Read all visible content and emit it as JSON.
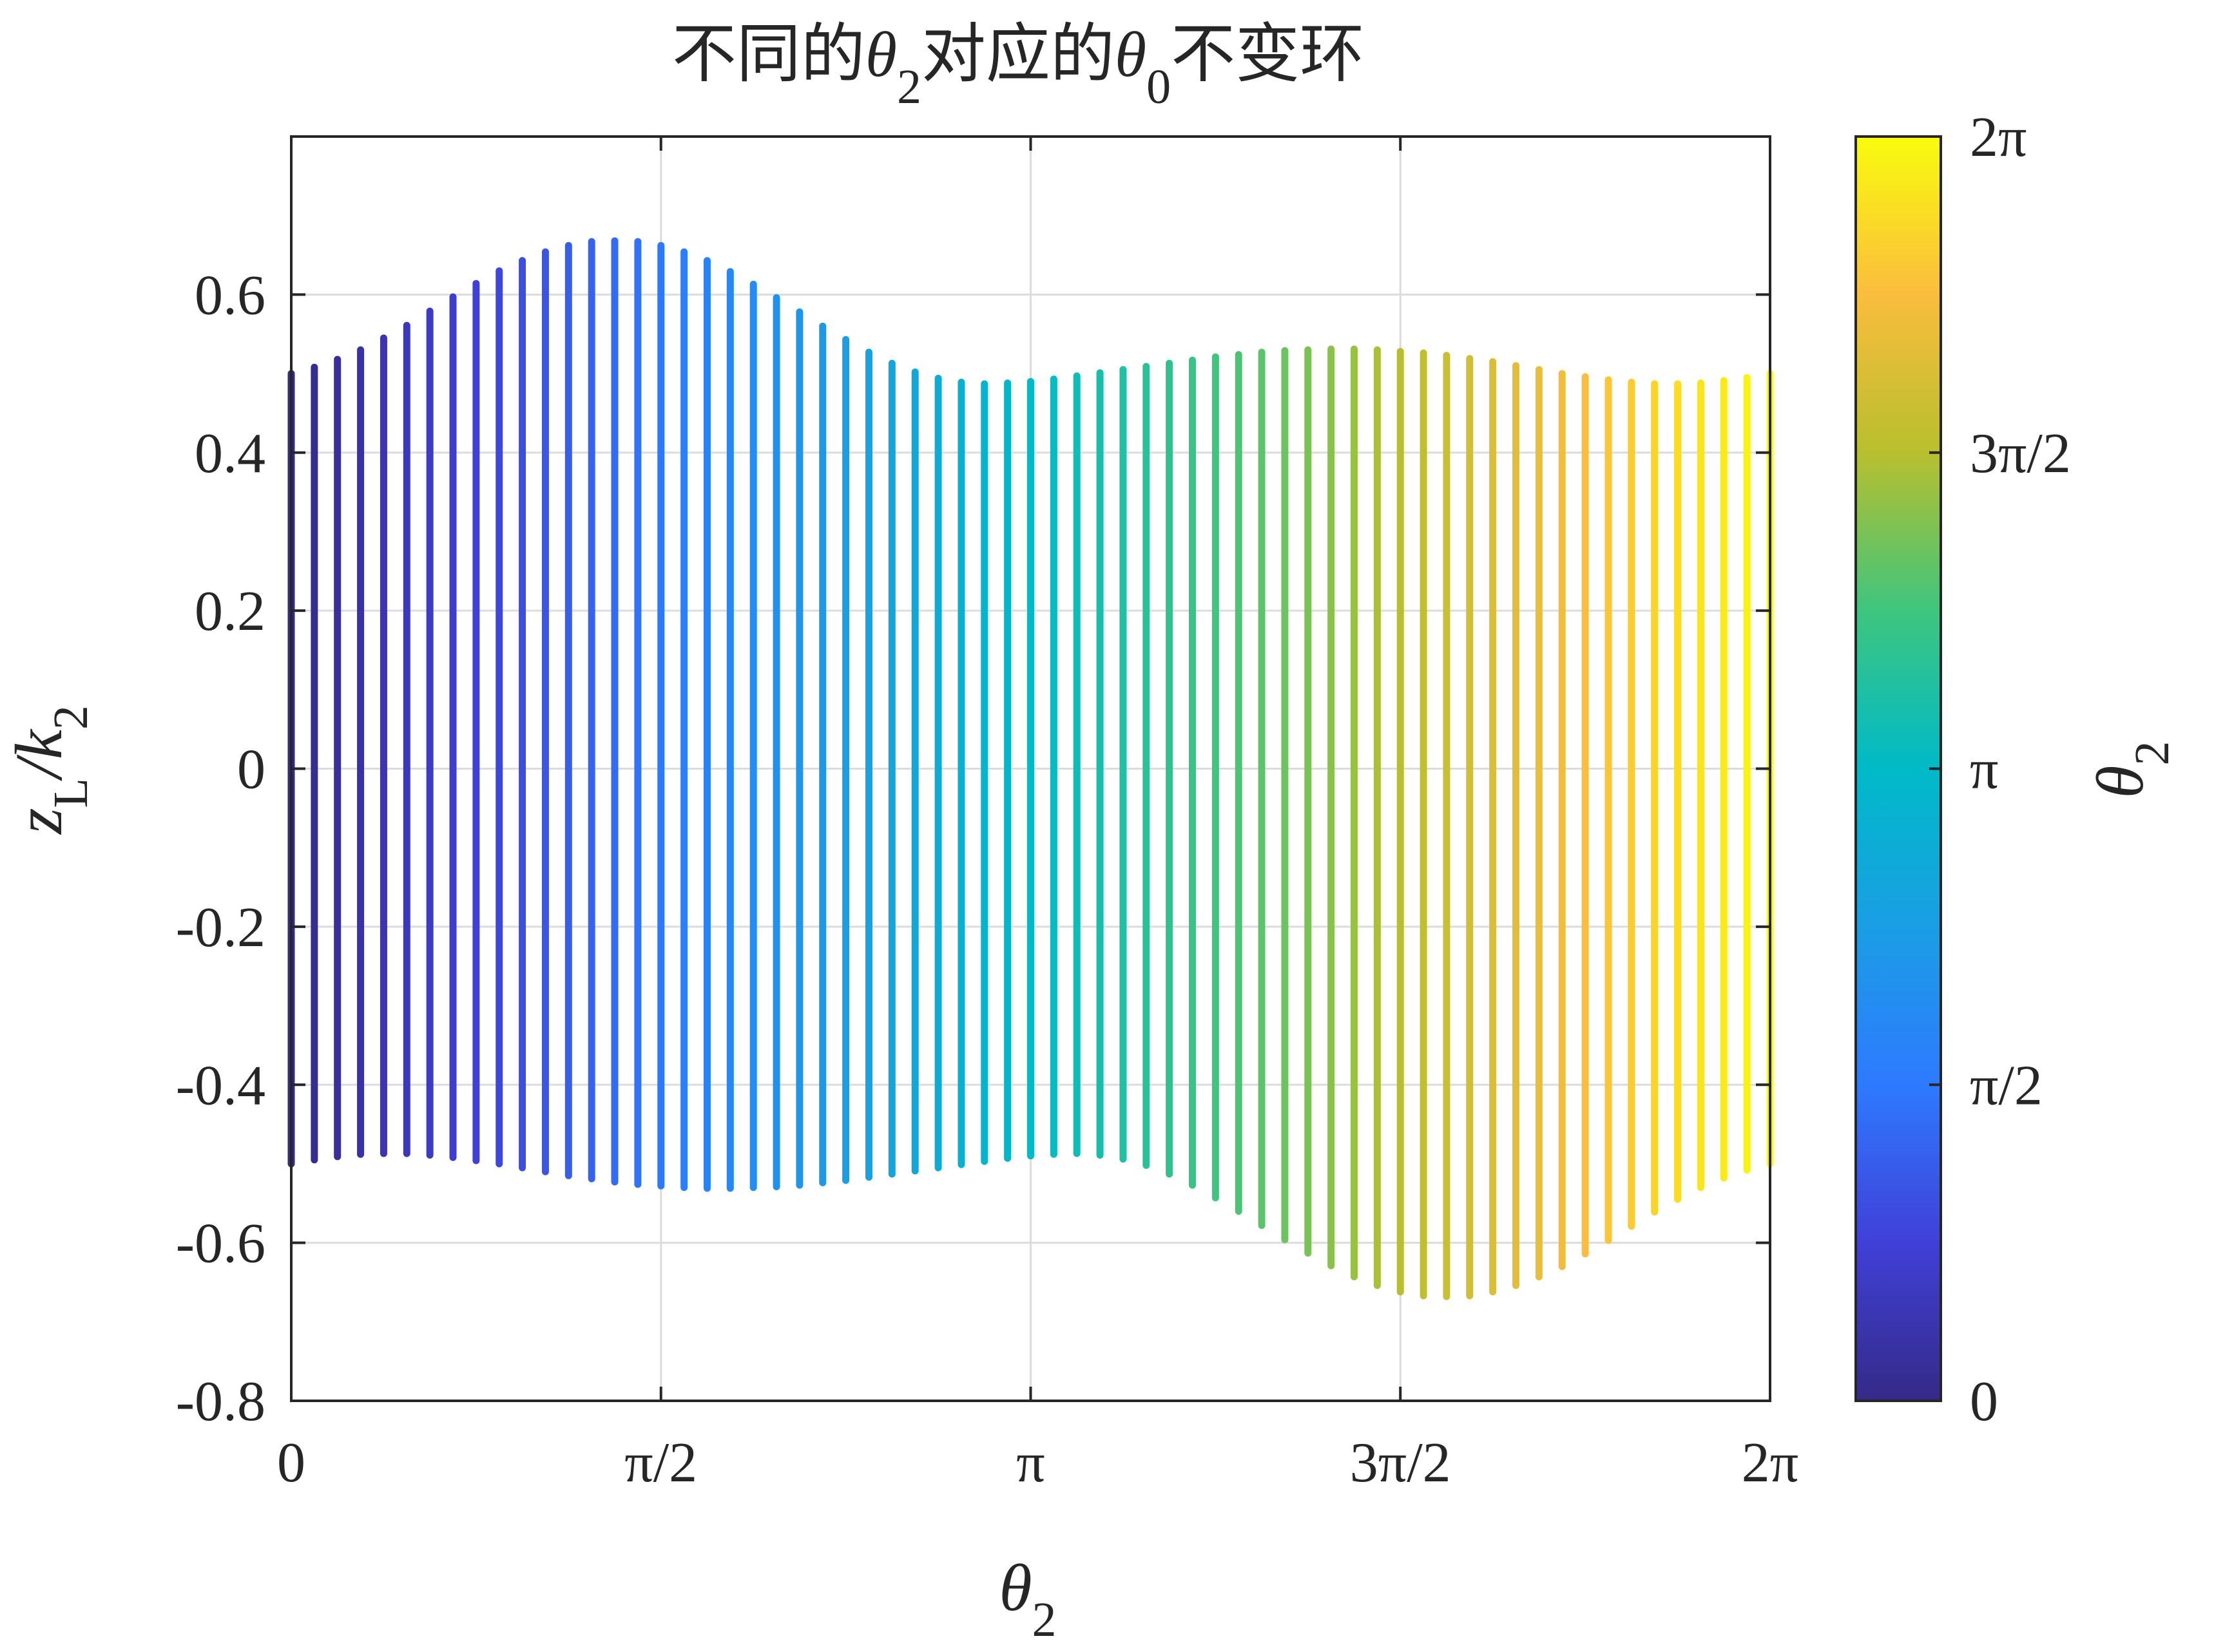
{
  "chart_data": {
    "type": "line",
    "title": "不同的θ2对应的θ0不变环",
    "title_parts": {
      "p1": "不同的",
      "theta": "θ",
      "sub1": "2",
      "p2": "对应的",
      "sub2": "0",
      "p3": "不变环"
    },
    "xlabel": {
      "main": "θ",
      "sub": "2"
    },
    "ylabel": {
      "main": "z",
      "sub1": "L",
      "slash": "/k",
      "sub2": "2"
    },
    "colorbar_label": {
      "main": "θ",
      "sub": "2"
    },
    "x_ticks": [
      "0",
      "π/2",
      "π",
      "3π/2",
      "2π"
    ],
    "x_tick_values": [
      0,
      1.5708,
      3.1416,
      4.7124,
      6.2832
    ],
    "y_ticks": [
      "-0.8",
      "-0.6",
      "-0.4",
      "-0.2",
      "0",
      "0.2",
      "0.4",
      "0.6"
    ],
    "y_tick_values": [
      -0.8,
      -0.6,
      -0.4,
      -0.2,
      0,
      0.2,
      0.4,
      0.6
    ],
    "xlim": [
      0,
      6.2832
    ],
    "ylim": [
      -0.8,
      0.8
    ],
    "colorbar_ticks": [
      "0",
      "π/2",
      "π",
      "3π/2",
      "2π"
    ],
    "colorbar_range": [
      0,
      6.2832
    ],
    "colormap": "parula",
    "grid": true,
    "series": {
      "x": [
        0,
        0.0982,
        0.1963,
        0.2945,
        0.3927,
        0.4909,
        0.589,
        0.6872,
        0.7854,
        0.8836,
        0.9817,
        1.0799,
        1.1781,
        1.2763,
        1.3744,
        1.4726,
        1.5708,
        1.669,
        1.7671,
        1.8653,
        1.9635,
        2.0617,
        2.1598,
        2.258,
        2.3562,
        2.4544,
        2.5525,
        2.6507,
        2.7489,
        2.8471,
        2.9452,
        3.0434,
        3.1416,
        3.2398,
        3.3379,
        3.4361,
        3.5343,
        3.6325,
        3.7306,
        3.8288,
        3.927,
        4.0252,
        4.1233,
        4.2215,
        4.3197,
        4.4179,
        4.516,
        4.6142,
        4.7124,
        4.8106,
        4.9087,
        5.0069,
        5.1051,
        5.2033,
        5.3014,
        5.3996,
        5.4978,
        5.596,
        5.6941,
        5.7923,
        5.8905,
        5.9887,
        6.0868,
        6.185,
        6.2832
      ],
      "y_top": [
        0.5,
        0.508,
        0.518,
        0.53,
        0.545,
        0.561,
        0.579,
        0.597,
        0.614,
        0.63,
        0.643,
        0.654,
        0.662,
        0.667,
        0.668,
        0.667,
        0.662,
        0.654,
        0.643,
        0.629,
        0.613,
        0.596,
        0.578,
        0.56,
        0.543,
        0.527,
        0.513,
        0.502,
        0.494,
        0.489,
        0.487,
        0.488,
        0.49,
        0.493,
        0.497,
        0.501,
        0.505,
        0.509,
        0.513,
        0.517,
        0.521,
        0.524,
        0.527,
        0.529,
        0.53,
        0.531,
        0.531,
        0.53,
        0.528,
        0.526,
        0.523,
        0.519,
        0.515,
        0.51,
        0.505,
        0.5,
        0.496,
        0.492,
        0.489,
        0.487,
        0.487,
        0.488,
        0.491,
        0.495,
        0.5
      ],
      "y_bottom": [
        -0.5,
        -0.495,
        -0.491,
        -0.488,
        -0.487,
        -0.487,
        -0.489,
        -0.492,
        -0.496,
        -0.5,
        -0.505,
        -0.51,
        -0.515,
        -0.519,
        -0.523,
        -0.526,
        -0.528,
        -0.53,
        -0.531,
        -0.531,
        -0.53,
        -0.529,
        -0.527,
        -0.524,
        -0.521,
        -0.517,
        -0.513,
        -0.509,
        -0.505,
        -0.501,
        -0.497,
        -0.493,
        -0.49,
        -0.488,
        -0.487,
        -0.489,
        -0.494,
        -0.502,
        -0.513,
        -0.527,
        -0.543,
        -0.56,
        -0.578,
        -0.596,
        -0.613,
        -0.629,
        -0.643,
        -0.654,
        -0.662,
        -0.667,
        -0.668,
        -0.667,
        -0.662,
        -0.654,
        -0.643,
        -0.63,
        -0.614,
        -0.597,
        -0.579,
        -0.561,
        -0.545,
        -0.53,
        -0.518,
        -0.508,
        -0.5
      ]
    }
  }
}
